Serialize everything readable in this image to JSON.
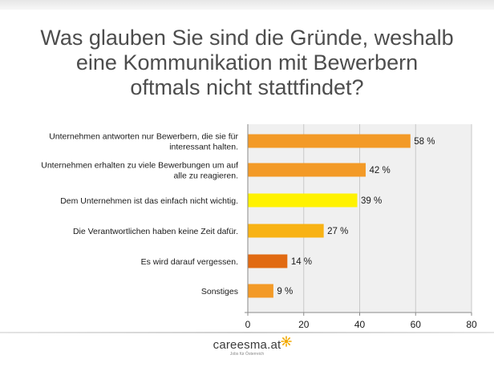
{
  "title": {
    "line1": "Was glauben Sie sind die Gründe, weshalb",
    "line2": "eine Kommunikation mit Bewerbern",
    "line3": "oftmals nicht stattfindet?"
  },
  "chart_data": {
    "type": "bar",
    "orientation": "horizontal",
    "title": "Was glauben Sie sind die Gründe, weshalb eine Kommunikation mit Bewerbern oftmals nicht stattfindet?",
    "categories": [
      [
        "Unternehmen antworten nur Bewerbern, die sie  für",
        "interessant halten."
      ],
      [
        "Unternehmen erhalten zu viele Bewerbungen um auf",
        "alle zu reagieren."
      ],
      [
        "Dem Unternehmen ist das einfach nicht wichtig."
      ],
      [
        "Die Verantwortlichen haben keine Zeit dafür."
      ],
      [
        "Es wird darauf vergessen."
      ],
      [
        "Sonstiges"
      ]
    ],
    "values": [
      58,
      42,
      39,
      27,
      14,
      9
    ],
    "value_labels": [
      "58 %",
      "42 %",
      "39 %",
      "27 %",
      "14 %",
      "9 %"
    ],
    "colors": [
      "#f39a27",
      "#f39a27",
      "#fff200",
      "#f8b214",
      "#e16a12",
      "#f39a27"
    ],
    "xlim": [
      0,
      80
    ],
    "xticks": [
      0,
      20,
      40,
      60,
      80
    ],
    "xtick_labels": [
      "0",
      "20",
      "40",
      "60",
      "80"
    ],
    "grid": true,
    "plot_background": "#f0f0f0",
    "grid_color": "#c8c8c8"
  },
  "footer": {
    "brand": "careesma.at",
    "tagline": "Jobs für Österreich",
    "accent_color": "#f2a900"
  }
}
